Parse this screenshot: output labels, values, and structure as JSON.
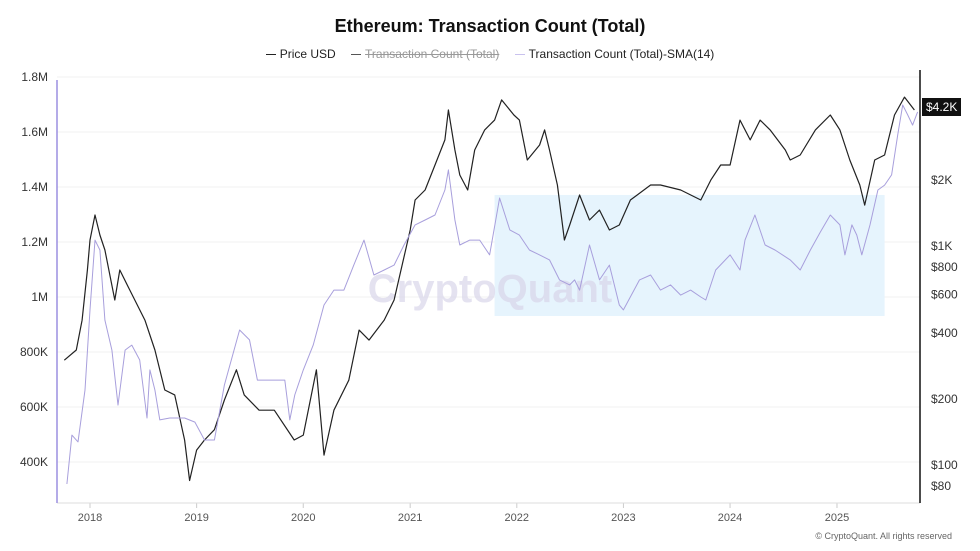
{
  "chart_data": {
    "type": "line",
    "title": "Ethereum: Transaction Count (Total)",
    "legend": [
      {
        "label": "Price USD",
        "color": "#222222",
        "hidden": false
      },
      {
        "label": "Transaction Count (Total)",
        "color": "#999999",
        "hidden": true
      },
      {
        "label": "Transaction Count (Total)-SMA(14)",
        "color": "#a89fdc",
        "hidden": false
      }
    ],
    "legend_placement": "top-center",
    "x_ticks": [
      "2018",
      "2019",
      "2020",
      "2021",
      "2022",
      "2023",
      "2024",
      "2025"
    ],
    "y_left": {
      "ticks": [
        "400K",
        "600K",
        "800K",
        "1M",
        "1.2M",
        "1.4M",
        "1.6M",
        "1.8M"
      ],
      "tick_values": [
        400000,
        600000,
        800000,
        1000000,
        1200000,
        1400000,
        1600000,
        1800000
      ],
      "scale": "linear"
    },
    "y_right": {
      "ticks": [
        "$80",
        "$100",
        "$200",
        "$400",
        "$600",
        "$800",
        "$1K",
        "$2K"
      ],
      "tick_values": [
        80,
        100,
        200,
        400,
        600,
        800,
        1000,
        2000
      ],
      "scale": "log"
    },
    "last_price_label": "$4.2K",
    "highlight_region": {
      "x": [
        "2021-10-17",
        "2025-06-13"
      ],
      "y": [
        931000,
        1371000
      ],
      "color": "#e6f4fd"
    },
    "grid": true,
    "watermark": "CryptoQuant",
    "series": [
      {
        "name": "Price USD",
        "axis": "right",
        "color": "#222222",
        "points": [
          [
            "2017-10-05",
            301
          ],
          [
            "2017-11-15",
            335
          ],
          [
            "2017-12-05",
            459
          ],
          [
            "2017-12-23",
            777
          ],
          [
            "2018-01-01",
            1065
          ],
          [
            "2018-01-18",
            1385
          ],
          [
            "2018-02-04",
            1123
          ],
          [
            "2018-02-21",
            959
          ],
          [
            "2018-03-27",
            567
          ],
          [
            "2018-04-13",
            777
          ],
          [
            "2018-05-17",
            630
          ],
          [
            "2018-07-08",
            459
          ],
          [
            "2018-08-11",
            335
          ],
          [
            "2018-09-14",
            220
          ],
          [
            "2018-10-18",
            209
          ],
          [
            "2018-11-21",
            130
          ],
          [
            "2018-12-08",
            85
          ],
          [
            "2019-01-01",
            117
          ],
          [
            "2019-01-28",
            130
          ],
          [
            "2019-03-03",
            145
          ],
          [
            "2019-04-06",
            198
          ],
          [
            "2019-05-17",
            272
          ],
          [
            "2019-06-13",
            209
          ],
          [
            "2019-08-03",
            178
          ],
          [
            "2019-09-24",
            178
          ],
          [
            "2019-12-01",
            130
          ],
          [
            "2020-01-01",
            137
          ],
          [
            "2020-02-15",
            272
          ],
          [
            "2020-03-12",
            111
          ],
          [
            "2020-04-15",
            178
          ],
          [
            "2020-06-05",
            244
          ],
          [
            "2020-07-10",
            413
          ],
          [
            "2020-08-13",
            372
          ],
          [
            "2020-10-04",
            459
          ],
          [
            "2020-11-07",
            567
          ],
          [
            "2021-01-01",
            1183
          ],
          [
            "2021-01-18",
            1622
          ],
          [
            "2021-02-21",
            1802
          ],
          [
            "2021-03-27",
            2344
          ],
          [
            "2021-04-30",
            3050
          ],
          [
            "2021-05-12",
            4178
          ],
          [
            "2021-06-03",
            2743
          ],
          [
            "2021-06-20",
            2110
          ],
          [
            "2021-07-17",
            1802
          ],
          [
            "2021-08-10",
            2743
          ],
          [
            "2021-09-13",
            3388
          ],
          [
            "2021-10-17",
            3758
          ],
          [
            "2021-11-10",
            4645
          ],
          [
            "2021-12-22",
            3963
          ],
          [
            "2022-01-10",
            3758
          ],
          [
            "2022-02-06",
            2470
          ],
          [
            "2022-03-20",
            2893
          ],
          [
            "2022-04-06",
            3388
          ],
          [
            "2022-04-23",
            2743
          ],
          [
            "2022-05-20",
            1900
          ],
          [
            "2022-06-13",
            1065
          ],
          [
            "2022-07-01",
            1247
          ],
          [
            "2022-08-04",
            1710
          ],
          [
            "2022-09-07",
            1315
          ],
          [
            "2022-10-11",
            1459
          ],
          [
            "2022-11-14",
            1183
          ],
          [
            "2022-12-18",
            1247
          ],
          [
            "2023-01-25",
            1622
          ],
          [
            "2023-04-04",
            1900
          ],
          [
            "2023-05-08",
            1900
          ],
          [
            "2023-07-16",
            1802
          ],
          [
            "2023-09-23",
            1622
          ],
          [
            "2023-10-27",
            2000
          ],
          [
            "2023-11-30",
            2344
          ],
          [
            "2024-01-01",
            2344
          ],
          [
            "2024-02-04",
            3758
          ],
          [
            "2024-03-10",
            3050
          ],
          [
            "2024-04-13",
            3758
          ],
          [
            "2024-05-17",
            3388
          ],
          [
            "2024-07-08",
            2743
          ],
          [
            "2024-07-25",
            2470
          ],
          [
            "2024-08-28",
            2604
          ],
          [
            "2024-10-19",
            3388
          ],
          [
            "2024-12-09",
            3963
          ],
          [
            "2025-01-11",
            3388
          ],
          [
            "2025-02-14",
            2470
          ],
          [
            "2025-03-20",
            1900
          ],
          [
            "2025-04-06",
            1538
          ],
          [
            "2025-05-10",
            2470
          ],
          [
            "2025-06-13",
            2604
          ],
          [
            "2025-07-17",
            3963
          ],
          [
            "2025-08-20",
            4786
          ],
          [
            "2025-09-23",
            4178
          ]
        ]
      },
      {
        "name": "Transaction Count (Total)-SMA(14)",
        "axis": "left",
        "color": "#a89fdc",
        "points": [
          [
            "2017-10-14",
            320000
          ],
          [
            "2017-10-31",
            498000
          ],
          [
            "2017-11-21",
            473000
          ],
          [
            "2017-12-15",
            662000
          ],
          [
            "2018-01-01",
            953000
          ],
          [
            "2018-01-18",
            1207000
          ],
          [
            "2018-02-04",
            1171000
          ],
          [
            "2018-02-21",
            916000
          ],
          [
            "2018-03-17",
            807000
          ],
          [
            "2018-04-07",
            607000
          ],
          [
            "2018-05-01",
            807000
          ],
          [
            "2018-05-24",
            825000
          ],
          [
            "2018-06-20",
            771000
          ],
          [
            "2018-07-15",
            560000
          ],
          [
            "2018-07-25",
            735000
          ],
          [
            "2018-08-11",
            662000
          ],
          [
            "2018-08-28",
            553000
          ],
          [
            "2018-10-01",
            560000
          ],
          [
            "2018-11-21",
            560000
          ],
          [
            "2018-12-26",
            545000
          ],
          [
            "2019-01-28",
            480000
          ],
          [
            "2019-03-03",
            480000
          ],
          [
            "2019-04-06",
            680000
          ],
          [
            "2019-05-28",
            880000
          ],
          [
            "2019-07-01",
            844000
          ],
          [
            "2019-07-28",
            698000
          ],
          [
            "2019-09-08",
            698000
          ],
          [
            "2019-10-30",
            698000
          ],
          [
            "2019-11-16",
            553000
          ],
          [
            "2019-12-03",
            644000
          ],
          [
            "2020-01-01",
            735000
          ],
          [
            "2020-02-04",
            825000
          ],
          [
            "2020-03-12",
            971000
          ],
          [
            "2020-04-15",
            1025000
          ],
          [
            "2020-05-19",
            1025000
          ],
          [
            "2020-06-22",
            1116000
          ],
          [
            "2020-07-27",
            1207000
          ],
          [
            "2020-08-30",
            1080000
          ],
          [
            "2020-10-04",
            1098000
          ],
          [
            "2020-11-07",
            1116000
          ],
          [
            "2020-12-11",
            1189000
          ],
          [
            "2021-01-18",
            1262000
          ],
          [
            "2021-02-21",
            1280000
          ],
          [
            "2021-03-27",
            1298000
          ],
          [
            "2021-04-30",
            1389000
          ],
          [
            "2021-05-12",
            1462000
          ],
          [
            "2021-06-03",
            1280000
          ],
          [
            "2021-06-20",
            1189000
          ],
          [
            "2021-07-24",
            1207000
          ],
          [
            "2021-08-27",
            1207000
          ],
          [
            "2021-09-30",
            1153000
          ],
          [
            "2021-11-03",
            1360000
          ],
          [
            "2021-12-08",
            1244000
          ],
          [
            "2022-01-10",
            1225000
          ],
          [
            "2022-02-13",
            1171000
          ],
          [
            "2022-03-20",
            1153000
          ],
          [
            "2022-04-23",
            1135000
          ],
          [
            "2022-05-27",
            1062000
          ],
          [
            "2022-07-01",
            1044000
          ],
          [
            "2022-07-18",
            1062000
          ],
          [
            "2022-08-04",
            1025000
          ],
          [
            "2022-09-07",
            1189000
          ],
          [
            "2022-10-11",
            1062000
          ],
          [
            "2022-11-14",
            1116000
          ],
          [
            "2022-12-18",
            971000
          ],
          [
            "2023-01-01",
            953000
          ],
          [
            "2023-02-25",
            1062000
          ],
          [
            "2023-04-04",
            1080000
          ],
          [
            "2023-05-08",
            1025000
          ],
          [
            "2023-06-11",
            1044000
          ],
          [
            "2023-07-16",
            1007000
          ],
          [
            "2023-08-19",
            1025000
          ],
          [
            "2023-09-23",
            1000000
          ],
          [
            "2023-10-10",
            989000
          ],
          [
            "2023-11-13",
            1098000
          ],
          [
            "2024-01-01",
            1153000
          ],
          [
            "2024-02-04",
            1098000
          ],
          [
            "2024-02-21",
            1207000
          ],
          [
            "2024-03-26",
            1298000
          ],
          [
            "2024-04-30",
            1189000
          ],
          [
            "2024-06-03",
            1171000
          ],
          [
            "2024-07-25",
            1135000
          ],
          [
            "2024-08-28",
            1098000
          ],
          [
            "2024-10-02",
            1171000
          ],
          [
            "2024-11-05",
            1236000
          ],
          [
            "2024-12-09",
            1298000
          ],
          [
            "2025-01-11",
            1262000
          ],
          [
            "2025-01-28",
            1153000
          ],
          [
            "2025-02-21",
            1262000
          ],
          [
            "2025-03-10",
            1225000
          ],
          [
            "2025-03-27",
            1153000
          ],
          [
            "2025-04-24",
            1262000
          ],
          [
            "2025-05-21",
            1389000
          ],
          [
            "2025-06-13",
            1407000
          ],
          [
            "2025-07-07",
            1444000
          ],
          [
            "2025-07-28",
            1589000
          ],
          [
            "2025-08-14",
            1698000
          ],
          [
            "2025-08-31",
            1662000
          ],
          [
            "2025-09-17",
            1625000
          ],
          [
            "2025-10-04",
            1673000
          ]
        ]
      }
    ]
  },
  "footer": "© CryptoQuant. All rights reserved"
}
